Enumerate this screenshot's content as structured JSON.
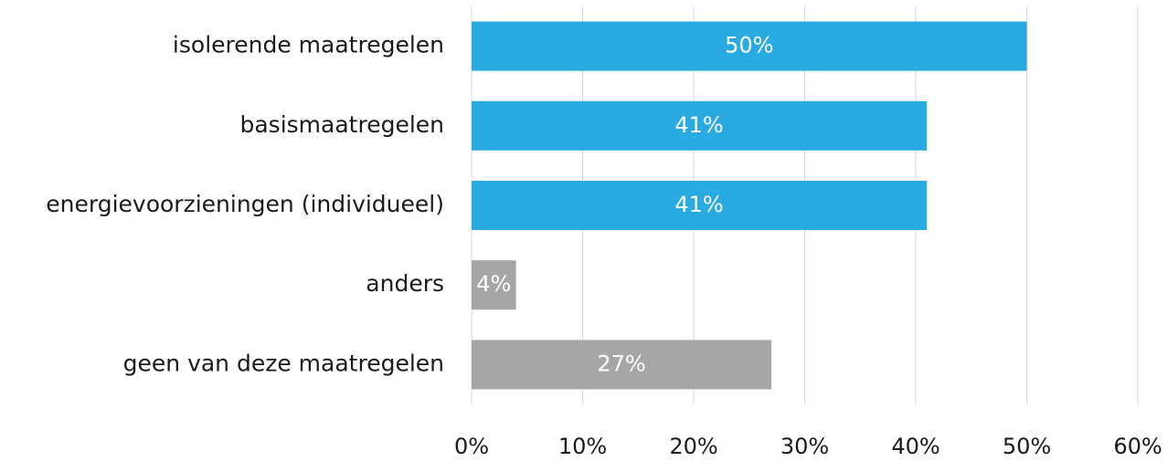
{
  "chart_data": {
    "type": "bar",
    "orientation": "horizontal",
    "categories": [
      "isolerende maatregelen",
      "basismaatregelen",
      "energievoorzieningen (individueel)",
      "anders",
      "geen van deze maatregelen"
    ],
    "values": [
      50,
      41,
      41,
      4,
      27
    ],
    "value_labels": [
      "50%",
      "41%",
      "41%",
      "4%",
      "27%"
    ],
    "colors": [
      "#29abe2",
      "#29abe2",
      "#29abe2",
      "#a6a6a6",
      "#a6a6a6"
    ],
    "xlim": [
      0,
      60
    ],
    "xticks": [
      {
        "value": 0,
        "label": "0%"
      },
      {
        "value": 10,
        "label": "10%"
      },
      {
        "value": 20,
        "label": "20%"
      },
      {
        "value": 30,
        "label": "30%"
      },
      {
        "value": 40,
        "label": "40%"
      },
      {
        "value": 50,
        "label": "50%"
      },
      {
        "value": 60,
        "label": "60%"
      }
    ],
    "grid": true
  }
}
